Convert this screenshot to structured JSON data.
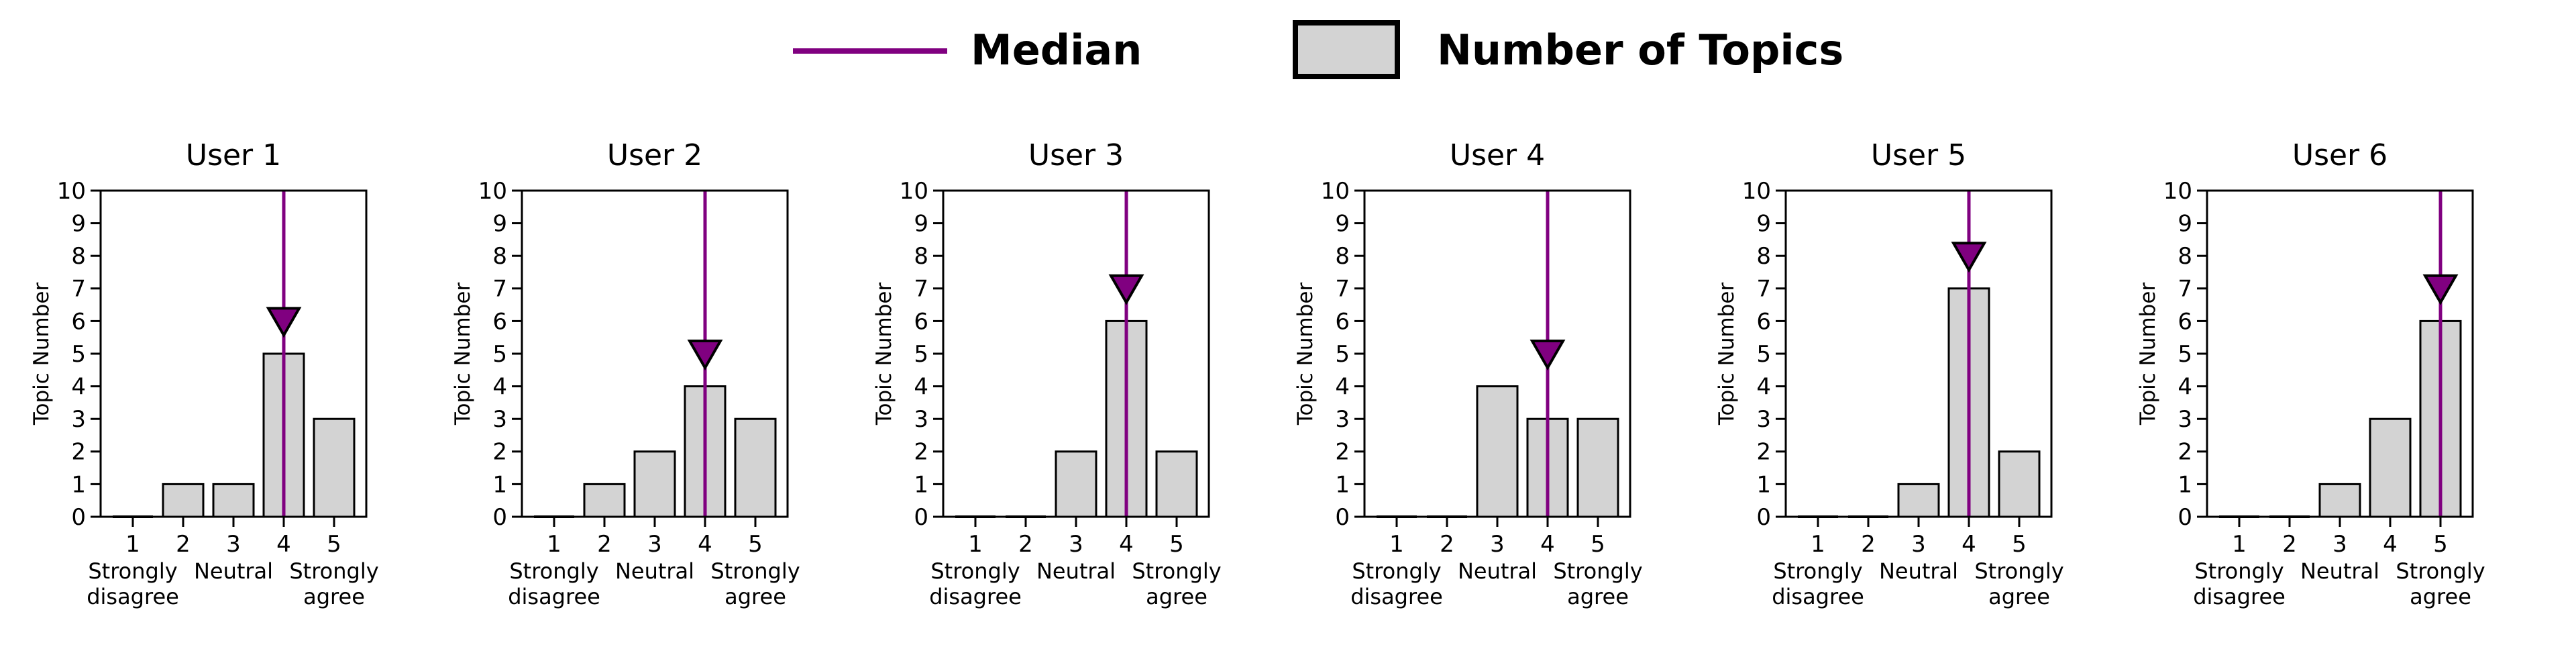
{
  "legend": {
    "median_label": "Median",
    "topics_label": "Number of Topics",
    "median_color": "#800080",
    "bar_fill": "#d3d3d3",
    "bar_edge": "#000000"
  },
  "axes": {
    "ylabel": "Topic Number",
    "ylim": [
      0,
      10
    ],
    "yticks": [
      0,
      1,
      2,
      3,
      4,
      5,
      6,
      7,
      8,
      9,
      10
    ],
    "xtick_labels": [
      "1",
      "2",
      "3",
      "4",
      "5"
    ],
    "xtick_sublabels": [
      {
        "at": 1,
        "lines": [
          "Strongly",
          "disagree"
        ]
      },
      {
        "at": 3,
        "lines": [
          "Neutral"
        ]
      },
      {
        "at": 5,
        "lines": [
          "Strongly",
          "agree"
        ]
      }
    ],
    "grid": false
  },
  "chart_data": [
    {
      "type": "bar",
      "title": "User 1",
      "categories": [
        1,
        2,
        3,
        4,
        5
      ],
      "values": [
        0,
        1,
        1,
        5,
        3
      ],
      "median": 4,
      "median_marker_y": 6,
      "ylabel": "Topic Number",
      "ylim": [
        0,
        10
      ]
    },
    {
      "type": "bar",
      "title": "User 2",
      "categories": [
        1,
        2,
        3,
        4,
        5
      ],
      "values": [
        0,
        1,
        2,
        4,
        3
      ],
      "median": 4,
      "median_marker_y": 5,
      "ylabel": "Topic Number",
      "ylim": [
        0,
        10
      ]
    },
    {
      "type": "bar",
      "title": "User 3",
      "categories": [
        1,
        2,
        3,
        4,
        5
      ],
      "values": [
        0,
        0,
        2,
        6,
        2
      ],
      "median": 4,
      "median_marker_y": 7,
      "ylabel": "Topic Number",
      "ylim": [
        0,
        10
      ]
    },
    {
      "type": "bar",
      "title": "User 4",
      "categories": [
        1,
        2,
        3,
        4,
        5
      ],
      "values": [
        0,
        0,
        4,
        3,
        3
      ],
      "median": 4,
      "median_marker_y": 5,
      "ylabel": "Topic Number",
      "ylim": [
        0,
        10
      ]
    },
    {
      "type": "bar",
      "title": "User 5",
      "categories": [
        1,
        2,
        3,
        4,
        5
      ],
      "values": [
        0,
        0,
        1,
        7,
        2
      ],
      "median": 4,
      "median_marker_y": 8,
      "ylabel": "Topic Number",
      "ylim": [
        0,
        10
      ]
    },
    {
      "type": "bar",
      "title": "User 6",
      "categories": [
        1,
        2,
        3,
        4,
        5
      ],
      "values": [
        0,
        0,
        1,
        3,
        6
      ],
      "median": 5,
      "median_marker_y": 7,
      "ylabel": "Topic Number",
      "ylim": [
        0,
        10
      ]
    }
  ]
}
